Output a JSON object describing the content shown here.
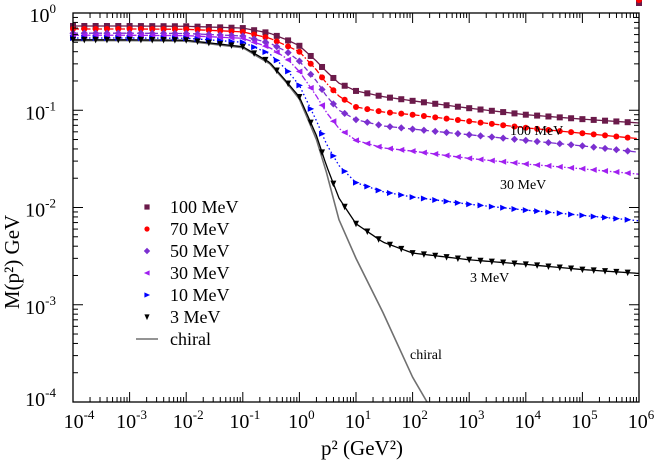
{
  "chart_data": {
    "type": "line",
    "xlabel": "p² (GeV²)",
    "ylabel": "M(p²) GeV",
    "xscale": "log",
    "yscale": "log",
    "xlim": [
      0.0001,
      1000000
    ],
    "ylim": [
      0.0001,
      1
    ],
    "x_tick_exponents": [
      -4,
      -3,
      -2,
      -1,
      0,
      1,
      2,
      3,
      4,
      5,
      6
    ],
    "y_tick_exponents": [
      -4,
      -3,
      -2,
      -1,
      0
    ],
    "grid": false,
    "legend_placement": "center-left",
    "x": [
      0.0001,
      0.001,
      0.01,
      0.1,
      0.3,
      0.6,
      1,
      2,
      3,
      5,
      10,
      30,
      100,
      1000,
      10000,
      100000,
      1000000
    ],
    "series": [
      {
        "name": "100 MeV",
        "color": "#6b1a4a",
        "marker": "square",
        "line": "solid",
        "values": [
          0.735,
          0.735,
          0.73,
          0.7,
          0.62,
          0.53,
          0.46,
          0.32,
          0.25,
          0.19,
          0.158,
          0.138,
          0.125,
          0.105,
          0.09,
          0.081,
          0.074
        ]
      },
      {
        "name": "70 MeV",
        "color": "#ff0000",
        "marker": "circle",
        "line": "dash-dot",
        "values": [
          0.685,
          0.685,
          0.68,
          0.64,
          0.55,
          0.46,
          0.4,
          0.26,
          0.19,
          0.14,
          0.108,
          0.096,
          0.09,
          0.077,
          0.066,
          0.058,
          0.051
        ]
      },
      {
        "name": "50 MeV",
        "color": "#7b2fd0",
        "marker": "diamond",
        "line": "dashed",
        "values": [
          0.62,
          0.62,
          0.615,
          0.58,
          0.49,
          0.4,
          0.32,
          0.2,
          0.14,
          0.1,
          0.08,
          0.069,
          0.064,
          0.056,
          0.049,
          0.043,
          0.037
        ]
      },
      {
        "name": "30 MeV",
        "color": "#a020f0",
        "marker": "triangle-left",
        "line": "dash-dot",
        "values": [
          0.59,
          0.59,
          0.585,
          0.55,
          0.44,
          0.34,
          0.25,
          0.14,
          0.095,
          0.065,
          0.049,
          0.041,
          0.038,
          0.032,
          0.028,
          0.025,
          0.022
        ]
      },
      {
        "name": "10 MeV",
        "color": "#0000ff",
        "marker": "triangle-right",
        "line": "dotted",
        "values": [
          0.553,
          0.553,
          0.55,
          0.5,
          0.38,
          0.26,
          0.18,
          0.078,
          0.045,
          0.027,
          0.018,
          0.0145,
          0.0128,
          0.0108,
          0.0094,
          0.0083,
          0.0073
        ]
      },
      {
        "name": "3 MeV",
        "color": "#000000",
        "marker": "triangle-down",
        "line": "solid",
        "values": [
          0.53,
          0.53,
          0.525,
          0.45,
          0.31,
          0.195,
          0.137,
          0.055,
          0.027,
          0.0125,
          0.0068,
          0.0044,
          0.0034,
          0.0029,
          0.0026,
          0.0023,
          0.0021
        ]
      }
    ],
    "chiral": {
      "name": "chiral",
      "color": "#707070",
      "line": "solid",
      "x": [
        0.0001,
        0.001,
        0.01,
        0.1,
        0.3,
        0.6,
        1,
        2,
        3,
        5,
        10,
        30,
        100,
        180
      ],
      "values": [
        0.52,
        0.52,
        0.515,
        0.44,
        0.3,
        0.19,
        0.13,
        0.05,
        0.023,
        0.0075,
        0.003,
        0.00083,
        0.00018,
        0.0001
      ]
    },
    "annotations": [
      {
        "text": "100 MeV"
      },
      {
        "text": "30 MeV"
      },
      {
        "text": "3 MeV"
      },
      {
        "text": "chiral"
      }
    ]
  }
}
